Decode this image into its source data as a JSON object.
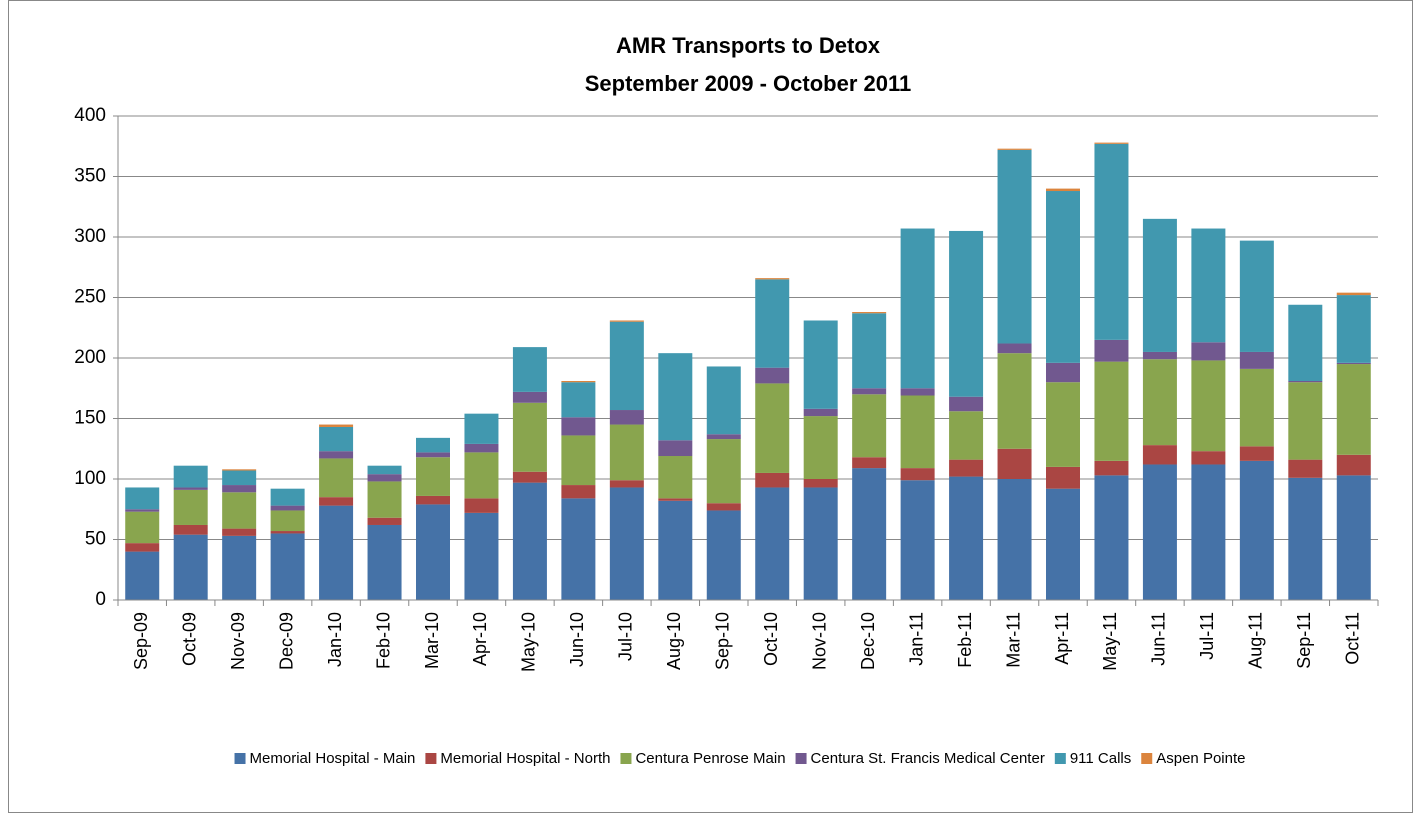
{
  "chart_data": {
    "type": "stacked-bar",
    "title": "AMR Transports to Detox",
    "subtitle": "September 2009 - October 2011",
    "categories": [
      "Sep-09",
      "Oct-09",
      "Nov-09",
      "Dec-09",
      "Jan-10",
      "Feb-10",
      "Mar-10",
      "Apr-10",
      "May-10",
      "Jun-10",
      "Jul-10",
      "Aug-10",
      "Sep-10",
      "Oct-10",
      "Nov-10",
      "Dec-10",
      "Jan-11",
      "Feb-11",
      "Mar-11",
      "Apr-11",
      "May-11",
      "Jun-11",
      "Jul-11",
      "Aug-11",
      "Sep-11",
      "Oct-11"
    ],
    "series": [
      {
        "name": "Memorial Hospital - Main",
        "color": "#4572a7",
        "values": [
          40,
          54,
          53,
          55,
          78,
          62,
          79,
          72,
          97,
          84,
          93,
          82,
          74,
          93,
          93,
          109,
          99,
          102,
          100,
          92,
          103,
          112,
          112,
          115,
          101,
          103
        ]
      },
      {
        "name": "Memorial Hospital - North",
        "color": "#aa4643",
        "values": [
          7,
          8,
          6,
          2,
          7,
          6,
          7,
          12,
          9,
          11,
          6,
          2,
          6,
          12,
          7,
          9,
          10,
          14,
          25,
          18,
          12,
          16,
          11,
          12,
          15,
          17
        ]
      },
      {
        "name": "Centura Penrose Main",
        "color": "#89a54e",
        "values": [
          26,
          29,
          30,
          17,
          32,
          30,
          32,
          38,
          57,
          41,
          46,
          35,
          53,
          74,
          52,
          52,
          60,
          40,
          79,
          70,
          82,
          71,
          75,
          64,
          64,
          75
        ]
      },
      {
        "name": "Centura St. Francis Medical Center",
        "color": "#71588f",
        "values": [
          2,
          2,
          6,
          4,
          6,
          6,
          4,
          7,
          9,
          15,
          12,
          13,
          4,
          13,
          6,
          5,
          6,
          12,
          8,
          16,
          18,
          6,
          15,
          14,
          1,
          1
        ]
      },
      {
        "name": "911 Calls",
        "color": "#4198af",
        "values": [
          18,
          18,
          12,
          14,
          20,
          7,
          12,
          25,
          37,
          29,
          73,
          72,
          56,
          73,
          73,
          62,
          132,
          137,
          160,
          142,
          162,
          110,
          94,
          92,
          63,
          56
        ]
      },
      {
        "name": "Aspen Pointe",
        "color": "#db843d",
        "values": [
          0,
          0,
          1,
          0,
          2,
          0,
          0,
          0,
          0,
          1,
          1,
          0,
          0,
          1,
          0,
          1,
          0,
          0,
          1,
          2,
          1,
          0,
          0,
          0,
          0,
          2
        ]
      }
    ],
    "ylim": [
      0,
      400
    ],
    "yticks": [
      0,
      50,
      100,
      150,
      200,
      250,
      300,
      350,
      400
    ],
    "grid": true,
    "legend": "bottom"
  }
}
